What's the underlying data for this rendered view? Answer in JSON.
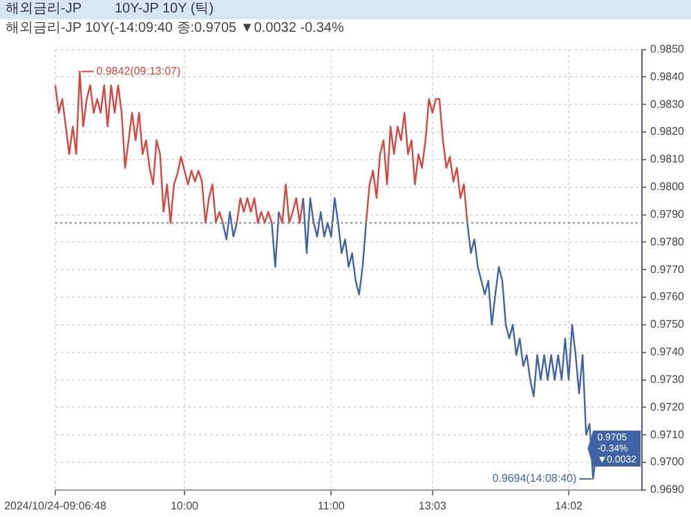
{
  "chart_data": {
    "type": "line",
    "title": "해외금리-JP",
    "subtitle": "10Y-JP 10Y (틱)",
    "annotations": [
      "해외금리-JP 10Y(-14:09:40 종:0.9705 ▼0.0032 -0.34%",
      "0.9842(09:13:07)",
      "0.9694(14:08:40)",
      "0.9705 -0.34% ▼0.0032"
    ],
    "categories": [
      "2024/10/24-09:06:48",
      null,
      null,
      null,
      null,
      null,
      null,
      null,
      null,
      null,
      null,
      null,
      null,
      null,
      null,
      null,
      null,
      null,
      null,
      null,
      null,
      null,
      null,
      null,
      null,
      null,
      null,
      null,
      null,
      null,
      null,
      null,
      null,
      null,
      null,
      null,
      null,
      "10:00",
      null,
      null,
      null,
      null,
      null,
      null,
      null,
      null,
      null,
      null,
      null,
      null,
      null,
      null,
      null,
      null,
      null,
      null,
      null,
      null,
      null,
      null,
      null,
      null,
      null,
      null,
      null,
      null,
      null,
      null,
      null,
      null,
      null,
      null,
      null,
      null,
      null,
      null,
      null,
      null,
      null,
      "11:00",
      null,
      null,
      null,
      null,
      null,
      null,
      null,
      null,
      null,
      null,
      null,
      null,
      null,
      null,
      null,
      null,
      null,
      null,
      null,
      null,
      null,
      null,
      null,
      null,
      null,
      null,
      null,
      null,
      "13:03",
      null,
      null,
      null,
      null,
      null,
      null,
      null,
      null,
      null,
      null,
      null,
      null,
      null,
      null,
      null,
      null,
      null,
      null,
      null,
      null,
      null,
      null,
      null,
      null,
      null,
      null,
      null,
      null,
      null,
      null,
      null,
      null,
      null,
      null,
      null,
      null,
      null,
      null,
      "14:02",
      null,
      null,
      null,
      null,
      null,
      null,
      null,
      null,
      null,
      null,
      null,
      null,
      null,
      null,
      null,
      null,
      null,
      null,
      null,
      null,
      null
    ],
    "series": [
      {
        "color": "#d8453c",
        "values": [
          0.9837,
          0.9827,
          0.9832,
          0.9822,
          0.9812,
          0.9822,
          0.9812,
          0.9842,
          0.9822,
          0.9832,
          0.9837,
          0.9827,
          0.9832,
          0.9827,
          0.9837,
          0.9822,
          0.9837,
          0.9827,
          0.9837,
          0.9827,
          0.9807,
          0.9817,
          0.9827,
          0.9817,
          0.9827,
          0.9812,
          0.9817,
          0.9807,
          0.9801,
          0.9817,
          0.9812,
          0.9791,
          0.9801,
          0.9787,
          0.9801,
          0.9805,
          0.9811,
          0.9806,
          0.9801,
          0.9806,
          0.9802,
          0.9806,
          0.9802,
          0.9787,
          0.9796,
          0.9801,
          0.9787,
          0.9791,
          0.9787,
          null,
          null,
          null,
          0.9787,
          0.9796,
          0.9791,
          0.9796,
          0.9791,
          0.9796,
          0.9787,
          0.9791,
          0.9787,
          0.9791,
          0.9787,
          null,
          0.9791,
          0.9787,
          0.9801,
          0.9787,
          0.9791,
          0.9796,
          0.9787,
          0.9796,
          null,
          null,
          null,
          null,
          null,
          null,
          null,
          null,
          null,
          null,
          null,
          null,
          null,
          null,
          null,
          null,
          null,
          0.9787,
          0.9801,
          0.9806,
          0.9796,
          0.9812,
          0.9817,
          0.9801,
          0.9822,
          0.9812,
          0.9822,
          0.9817,
          0.9827,
          0.9812,
          0.9817,
          0.9801,
          0.9812,
          0.9807,
          0.9817,
          0.9832,
          0.9827,
          0.9832,
          0.9832,
          0.9817,
          0.9807,
          0.9811,
          0.9802,
          0.9807,
          0.9796,
          0.9801,
          0.9787,
          null,
          null,
          null,
          null,
          null,
          null,
          null,
          null,
          null,
          null,
          null,
          null,
          null,
          null,
          null,
          null,
          null,
          null,
          null,
          null,
          null,
          null,
          null,
          null,
          null,
          null,
          null,
          null,
          null,
          null,
          null,
          null,
          null,
          null,
          null,
          null,
          null,
          null,
          null,
          null,
          null,
          null,
          null,
          null,
          null,
          null,
          null,
          null,
          null,
          null
        ]
      },
      {
        "color": "#3e63a6",
        "values": [
          null,
          null,
          null,
          null,
          null,
          null,
          null,
          null,
          null,
          null,
          null,
          null,
          null,
          null,
          null,
          null,
          null,
          null,
          null,
          null,
          null,
          null,
          null,
          null,
          null,
          null,
          null,
          null,
          null,
          null,
          null,
          null,
          null,
          null,
          null,
          null,
          null,
          null,
          null,
          null,
          null,
          null,
          null,
          null,
          null,
          null,
          null,
          null,
          0.9787,
          0.9781,
          0.9791,
          0.9782,
          0.9787,
          null,
          null,
          null,
          null,
          null,
          null,
          null,
          null,
          null,
          0.9787,
          0.9771,
          0.9791,
          null,
          null,
          null,
          null,
          null,
          null,
          0.9796,
          0.9776,
          0.9796,
          0.9787,
          0.9782,
          0.9791,
          0.9782,
          0.9787,
          0.9782,
          0.9796,
          0.9787,
          0.9776,
          0.9781,
          0.9771,
          0.9776,
          0.9766,
          0.9761,
          0.9771,
          0.9787,
          null,
          null,
          null,
          null,
          null,
          null,
          null,
          null,
          null,
          null,
          null,
          null,
          null,
          null,
          null,
          null,
          null,
          null,
          null,
          null,
          null,
          null,
          null,
          null,
          null,
          null,
          null,
          null,
          0.9787,
          0.9776,
          0.9781,
          0.9771,
          0.9766,
          0.9761,
          0.9766,
          0.975,
          0.9761,
          0.9771,
          0.9766,
          0.975,
          0.9745,
          0.975,
          0.9739,
          0.9745,
          0.9735,
          0.9739,
          0.973,
          0.9724,
          0.9739,
          0.973,
          0.9739,
          0.973,
          0.9739,
          0.973,
          0.9739,
          0.973,
          0.9745,
          0.973,
          0.975,
          0.9739,
          0.9725,
          0.9739,
          0.971,
          0.9714,
          0.9694,
          0.9705,
          null,
          null,
          null,
          null,
          null,
          null,
          null,
          null,
          null,
          null,
          null,
          null,
          null
        ]
      }
    ],
    "ylim": [
      0.969,
      0.985
    ],
    "yticks": [
      {
        "value": 0.969,
        "label": "0.9690"
      },
      {
        "value": 0.97,
        "label": "0.9700"
      },
      {
        "value": 0.971,
        "label": "0.9710"
      },
      {
        "value": 0.972,
        "label": "0.9720"
      },
      {
        "value": 0.973,
        "label": "0.9730"
      },
      {
        "value": 0.974,
        "label": "0.9740"
      },
      {
        "value": 0.975,
        "label": "0.9750"
      },
      {
        "value": 0.976,
        "label": "0.9760"
      },
      {
        "value": 0.977,
        "label": "0.9770"
      },
      {
        "value": 0.978,
        "label": "0.9780"
      },
      {
        "value": 0.979,
        "label": "0.9790"
      },
      {
        "value": 0.98,
        "label": "0.9800"
      },
      {
        "value": 0.981,
        "label": "0.9810"
      },
      {
        "value": 0.982,
        "label": "0.9820"
      },
      {
        "value": 0.983,
        "label": "0.9830"
      },
      {
        "value": 0.984,
        "label": "0.9840"
      },
      {
        "value": 0.985,
        "label": "0.9850"
      }
    ],
    "ref_lines": [
      {
        "axis": "y",
        "value": 0.9787,
        "color": "#888888",
        "line_style": "dotted"
      }
    ],
    "grid": true,
    "line_style": "solid",
    "marker": "none"
  }
}
